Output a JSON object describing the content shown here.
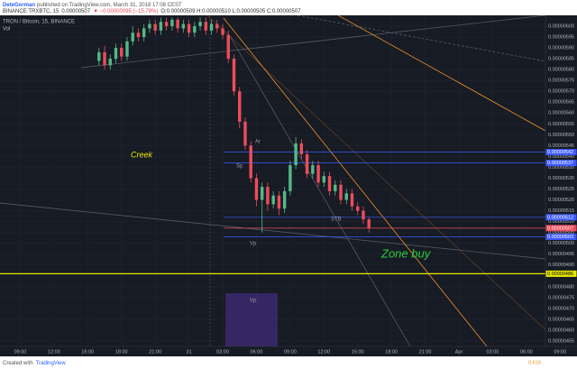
{
  "header": {
    "author": "DeteGorman",
    "published": "published on TradingView.com, March 31, 2018 17:08 CEST",
    "symbol": "BINANCE:TRXBTC, 15",
    "last": "0.00000507",
    "change": "▼ −0.00000095 (−15.78%)",
    "ohlc": "O:0.00000509 H:0.00000510 L:0.00000505 C:0.00000507"
  },
  "footer": {
    "created": "Created with",
    "brand": "TradingView"
  },
  "chart_data": {
    "type": "candlestick",
    "title": "TRON / Bitcoin, 15, BINANCE",
    "subtitle": "Vol",
    "up_color": "#53b987",
    "down_color": "#eb4d5c",
    "grid": true,
    "x": [
      16,
      16.5,
      17,
      17.5,
      18,
      18.5,
      19,
      19.5,
      20,
      20.5,
      21,
      21.5,
      22,
      22.5,
      23,
      23.5,
      24,
      24.5,
      25,
      25.5,
      26,
      26.5,
      27,
      27.5,
      28,
      28.5,
      29,
      29.5,
      30,
      30.5,
      31,
      31.5,
      32,
      32.5,
      33,
      33.5,
      34,
      34.5,
      35,
      35.5,
      36,
      36.5,
      37,
      37.5,
      38,
      38.5,
      39,
      39.5,
      40
    ],
    "open": [
      5.84e-06,
      5.88e-06,
      5.82e-06,
      5.85e-06,
      5.9e-06,
      5.86e-06,
      5.93e-06,
      5.97e-06,
      5.95e-06,
      5.99e-06,
      6.01e-06,
      5.98e-06,
      6.02e-06,
      6e-06,
      6.03e-06,
      5.99e-06,
      6.01e-06,
      5.97e-06,
      6e-06,
      6.02e-06,
      5.98e-06,
      6.01e-06,
      5.99e-06,
      5.96e-06,
      5.85e-06,
      5.7e-06,
      5.56e-06,
      5.45e-06,
      5.3e-06,
      5.2e-06,
      5.26e-06,
      5.18e-06,
      5.22e-06,
      5.16e-06,
      5.24e-06,
      5.36e-06,
      5.46e-06,
      5.41e-06,
      5.32e-06,
      5.36e-06,
      5.28e-06,
      5.31e-06,
      5.24e-06,
      5.27e-06,
      5.2e-06,
      5.23e-06,
      5.17e-06,
      5.15e-06,
      5.11e-06
    ],
    "high": [
      5.9e-06,
      5.91e-06,
      5.87e-06,
      5.92e-06,
      5.92e-06,
      5.95e-06,
      6e-06,
      5.99e-06,
      6.01e-06,
      6.03e-06,
      6.03e-06,
      6.04e-06,
      6.04e-06,
      6.04e-06,
      6.04e-06,
      6.03e-06,
      6.03e-06,
      6.02e-06,
      6.04e-06,
      6.04e-06,
      6.03e-06,
      6.03e-06,
      6.01e-06,
      5.98e-06,
      5.87e-06,
      5.72e-06,
      5.58e-06,
      5.47e-06,
      5.32e-06,
      5.28e-06,
      5.28e-06,
      5.24e-06,
      5.24e-06,
      5.26e-06,
      5.38e-06,
      5.49e-06,
      5.48e-06,
      5.43e-06,
      5.38e-06,
      5.38e-06,
      5.33e-06,
      5.33e-06,
      5.29e-06,
      5.29e-06,
      5.25e-06,
      5.25e-06,
      5.19e-06,
      5.17e-06,
      5.12e-06
    ],
    "low": [
      5.82e-06,
      5.8e-06,
      5.8e-06,
      5.83e-06,
      5.84e-06,
      5.84e-06,
      5.91e-06,
      5.93e-06,
      5.93e-06,
      5.97e-06,
      5.96e-06,
      5.96e-06,
      5.98e-06,
      5.98e-06,
      5.97e-06,
      5.97e-06,
      5.95e-06,
      5.95e-06,
      5.98e-06,
      5.96e-06,
      5.96e-06,
      5.97e-06,
      5.94e-06,
      5.83e-06,
      5.68e-06,
      5.53e-06,
      5.43e-06,
      5.28e-06,
      5.17e-06,
      5.05e-06,
      5.15e-06,
      5.16e-06,
      5.13e-06,
      5.14e-06,
      5.22e-06,
      5.34e-06,
      5.39e-06,
      5.3e-06,
      5.3e-06,
      5.26e-06,
      5.26e-06,
      5.22e-06,
      5.22e-06,
      5.18e-06,
      5.18e-06,
      5.15e-06,
      5.13e-06,
      5.09e-06,
      5.05e-06
    ],
    "close": [
      5.88e-06,
      5.82e-06,
      5.85e-06,
      5.9e-06,
      5.86e-06,
      5.93e-06,
      5.97e-06,
      5.95e-06,
      5.99e-06,
      6.01e-06,
      5.98e-06,
      6.02e-06,
      6e-06,
      6.03e-06,
      5.99e-06,
      6.01e-06,
      5.97e-06,
      6e-06,
      6.02e-06,
      5.98e-06,
      6.01e-06,
      5.99e-06,
      5.96e-06,
      5.85e-06,
      5.7e-06,
      5.56e-06,
      5.45e-06,
      5.3e-06,
      5.2e-06,
      5.26e-06,
      5.18e-06,
      5.22e-06,
      5.16e-06,
      5.24e-06,
      5.36e-06,
      5.46e-06,
      5.41e-06,
      5.32e-06,
      5.36e-06,
      5.28e-06,
      5.31e-06,
      5.24e-06,
      5.27e-06,
      5.2e-06,
      5.23e-06,
      5.17e-06,
      5.15e-06,
      5.11e-06,
      5.07e-06
    ],
    "xlim": [
      7.2,
      58.5
    ],
    "xticks": [
      {
        "value": 9,
        "label": "09:00"
      },
      {
        "value": 12,
        "label": "12:00"
      },
      {
        "value": 15,
        "label": "15:00"
      },
      {
        "value": 18,
        "label": "18:00"
      },
      {
        "value": 21,
        "label": "21:00"
      },
      {
        "value": 24,
        "label": "31"
      },
      {
        "value": 27,
        "label": "03:00"
      },
      {
        "value": 30,
        "label": "06:00"
      },
      {
        "value": 33,
        "label": "09:00"
      },
      {
        "value": 36,
        "label": "12:00"
      },
      {
        "value": 39,
        "label": "15:00"
      },
      {
        "value": 42,
        "label": "18:00"
      },
      {
        "value": 45,
        "label": "21:00"
      },
      {
        "value": 48,
        "label": "Apr"
      },
      {
        "value": 51,
        "label": "03:00"
      },
      {
        "value": 54,
        "label": "06:00"
      },
      {
        "value": 57,
        "label": "09:00"
      }
    ],
    "ylim": [
      4.525e-06,
      6.05e-06
    ],
    "yticks": [
      {
        "value": 4.55e-06,
        "label": "0.00000455"
      },
      {
        "value": 4.6e-06,
        "label": "0.00000460"
      },
      {
        "value": 4.65e-06,
        "label": "0.00000465"
      },
      {
        "value": 4.7e-06,
        "label": "0.00000470"
      },
      {
        "value": 4.75e-06,
        "label": "0.00000475"
      },
      {
        "value": 4.8e-06,
        "label": "0.00000480"
      },
      {
        "value": 4.85e-06,
        "label": "0.00000485"
      },
      {
        "value": 4.9e-06,
        "label": "0.00000490"
      },
      {
        "value": 4.95e-06,
        "label": "0.00000495"
      },
      {
        "value": 5e-06,
        "label": "0.00000500"
      },
      {
        "value": 5.05e-06,
        "label": "0.00000505"
      },
      {
        "value": 5.1e-06,
        "label": "0.00000510"
      },
      {
        "value": 5.15e-06,
        "label": "0.00000515"
      },
      {
        "value": 5.2e-06,
        "label": "0.00000520"
      },
      {
        "value": 5.25e-06,
        "label": "0.00000525"
      },
      {
        "value": 5.3e-06,
        "label": "0.00000530"
      },
      {
        "value": 5.35e-06,
        "label": "0.00000535"
      },
      {
        "value": 5.4e-06,
        "label": "0.00000540"
      },
      {
        "value": 5.45e-06,
        "label": "0.00000545"
      },
      {
        "value": 5.5e-06,
        "label": "0.00000550"
      },
      {
        "value": 5.55e-06,
        "label": "0.00000555"
      },
      {
        "value": 5.6e-06,
        "label": "0.00000560"
      },
      {
        "value": 5.65e-06,
        "label": "0.00000565"
      },
      {
        "value": 5.7e-06,
        "label": "0.00000570"
      },
      {
        "value": 5.75e-06,
        "label": "0.00000575"
      },
      {
        "value": 5.8e-06,
        "label": "0.00000580"
      },
      {
        "value": 5.85e-06,
        "label": "0.00000585"
      },
      {
        "value": 5.9e-06,
        "label": "0.00000590"
      },
      {
        "value": 5.95e-06,
        "label": "0.00000595"
      },
      {
        "value": 6e-06,
        "label": "0.00000600"
      }
    ],
    "levels": [
      {
        "value": 5.42e-06,
        "label": "0.00000542",
        "color": "#3d5afe"
      },
      {
        "value": 5.37e-06,
        "label": "0.00000537",
        "color": "#3d5afe"
      },
      {
        "value": 5.12e-06,
        "label": "0.00000512",
        "color": "#3d5afe"
      },
      {
        "value": 5.07e-06,
        "label": "0.00000507",
        "color": "#eb4d5c"
      },
      {
        "value": 5.03e-06,
        "label": "0.00000503",
        "color": "#3d5afe"
      },
      {
        "value": 4.86e-06,
        "label": "0.00000486",
        "color": "#e8e800"
      }
    ],
    "annotations": [
      "Creek",
      "Ar",
      "Sp",
      "STB",
      "Vp",
      "Vp",
      "Zone buy",
      "0.618"
    ]
  }
}
